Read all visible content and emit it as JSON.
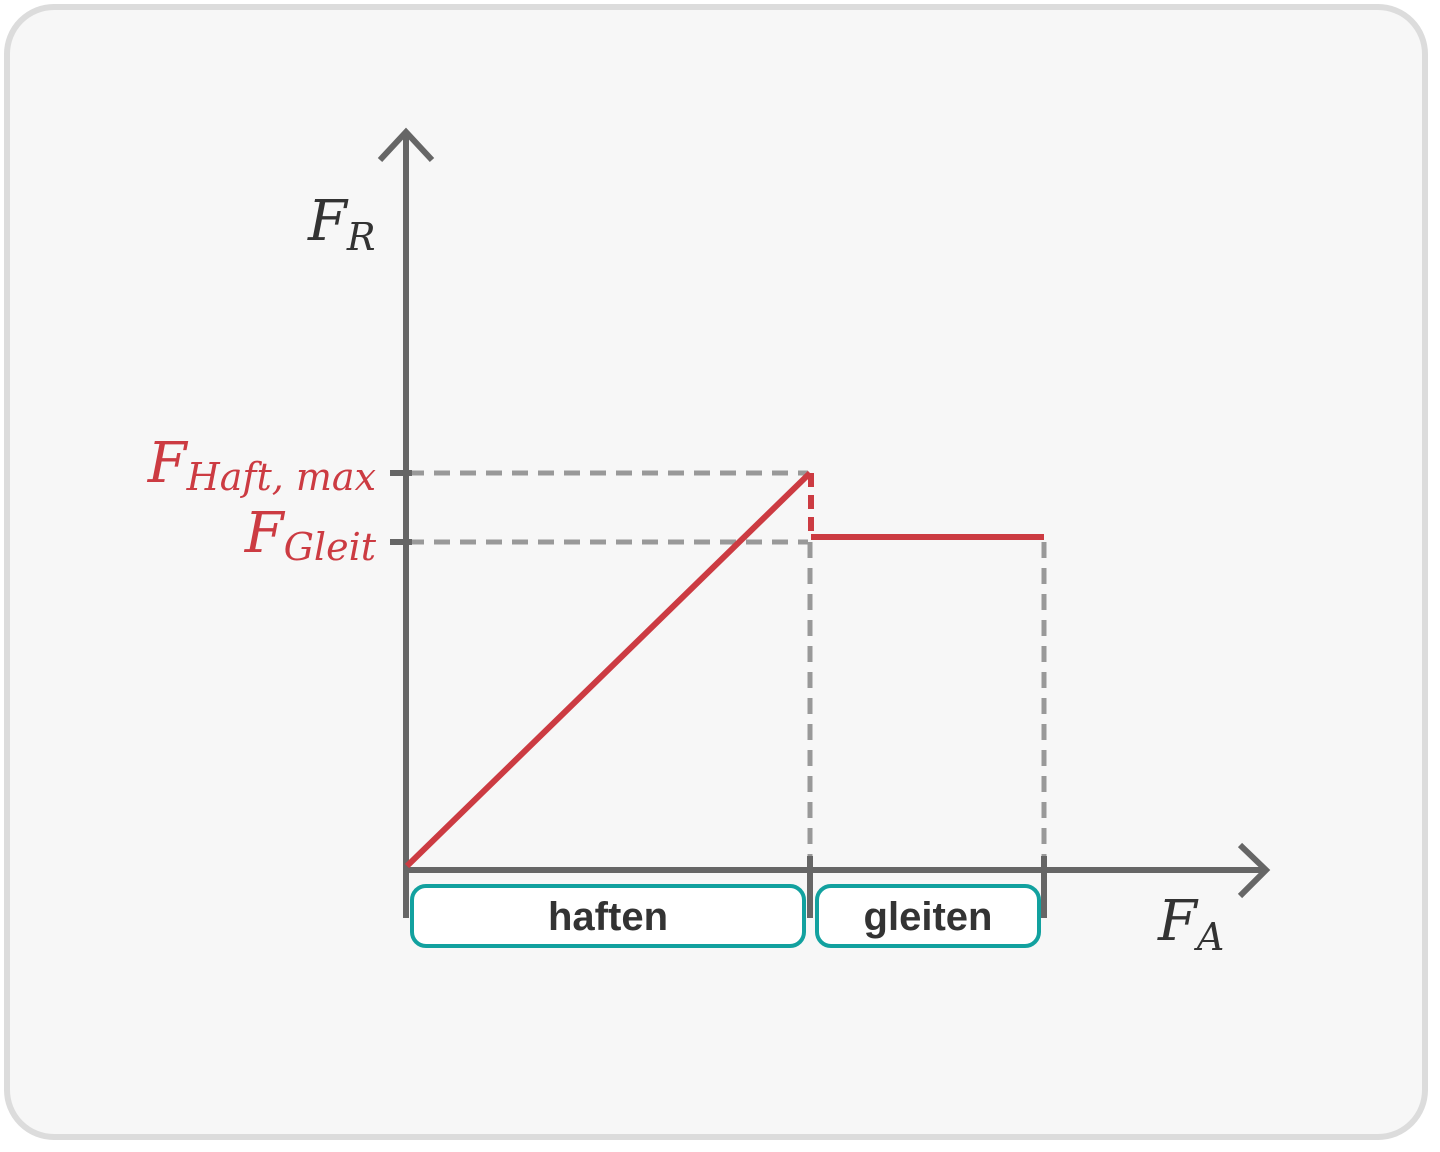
{
  "colors": {
    "axis": "#666666",
    "guide": "#999999",
    "curve": "#cc3b42",
    "region_border": "#12a19f",
    "region_fill": "#ffffff",
    "label_dark": "#333333"
  },
  "y_axis": {
    "symbol": "F",
    "subscript": "R"
  },
  "x_axis": {
    "symbol": "F",
    "subscript": "A"
  },
  "levels": {
    "haft_max": {
      "symbol": "F",
      "subscript": "Haft, max"
    },
    "gleit": {
      "symbol": "F",
      "subscript": "Gleit"
    }
  },
  "regions": [
    {
      "label": "haften"
    },
    {
      "label": "gleiten"
    }
  ],
  "chart_data": {
    "type": "line",
    "xlabel": "F_A",
    "ylabel": "F_R",
    "series": [
      {
        "name": "",
        "x": [
          0,
          1,
          1,
          1.58
        ],
        "y": [
          0,
          1,
          0.84,
          0.84
        ]
      }
    ],
    "y_ticks": [
      "F_Haft,max",
      "F_Gleit"
    ],
    "regions": [
      "haften",
      "gleiten"
    ]
  }
}
